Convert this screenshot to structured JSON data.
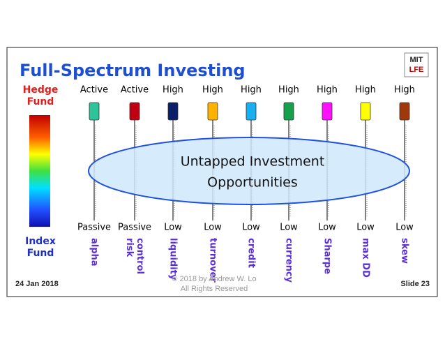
{
  "header": {
    "title": "Full-Spectrum Investing",
    "logo": [
      "MIT",
      "LFE"
    ]
  },
  "scale": {
    "top": [
      "Hedge",
      "Fund"
    ],
    "bottom": [
      "Index",
      "Fund"
    ]
  },
  "columns": [
    {
      "top": "Active",
      "bottom": "Passive",
      "name": [
        "alpha"
      ],
      "color": "#2ec49a"
    },
    {
      "top": "Active",
      "bottom": "Passive",
      "name": [
        "risk",
        "control"
      ],
      "color": "#c00010"
    },
    {
      "top": "High",
      "bottom": "Low",
      "name": [
        "liquidity"
      ],
      "color": "#0c1f6a"
    },
    {
      "top": "High",
      "bottom": "Low",
      "name": [
        "turnover"
      ],
      "color": "#ffb300"
    },
    {
      "top": "High",
      "bottom": "Low",
      "name": [
        "credit"
      ],
      "color": "#18b0f0"
    },
    {
      "top": "High",
      "bottom": "Low",
      "name": [
        "currency"
      ],
      "color": "#15a04c"
    },
    {
      "top": "High",
      "bottom": "Low",
      "name": [
        "Sharpe"
      ],
      "color": "#ff10ff"
    },
    {
      "top": "High",
      "bottom": "Low",
      "name": [
        "max DD"
      ],
      "color": "#ffff00"
    },
    {
      "top": "High",
      "bottom": "Low",
      "name": [
        "skew"
      ],
      "color": "#a0380c"
    }
  ],
  "center": [
    "Untapped Investment",
    "Opportunities"
  ],
  "footer": {
    "date": "24 Jan 2018",
    "copyright": [
      "© 2018 by Andrew W. Lo",
      "All Rights Reserved"
    ],
    "slide": "Slide 23"
  }
}
